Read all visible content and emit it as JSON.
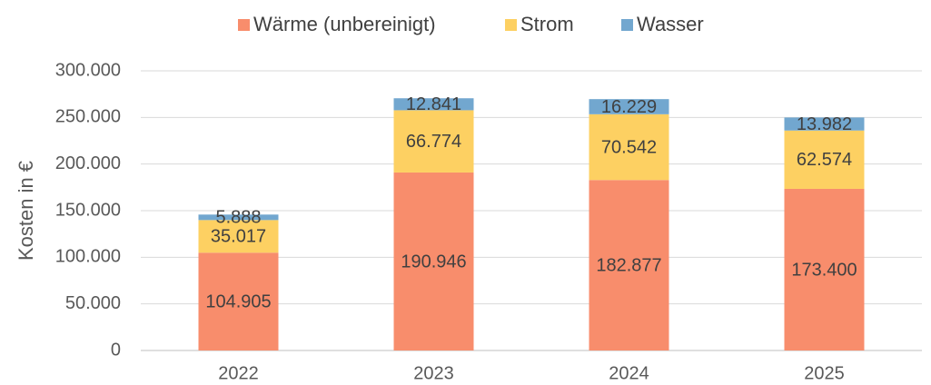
{
  "chart_data": {
    "type": "stacked_bar",
    "y_axis_label": "Kosten in €",
    "categories": [
      "2022",
      "2023",
      "2024",
      "2025"
    ],
    "series": [
      {
        "name": "Wärme (unbereinigt)",
        "color": "#f88d6c",
        "values": [
          104905,
          190946,
          182877,
          173400
        ],
        "value_labels": [
          "104.905",
          "190.946",
          "182.877",
          "173.400"
        ]
      },
      {
        "name": "Strom",
        "color": "#fdd062",
        "values": [
          35017,
          66774,
          70542,
          62574
        ],
        "value_labels": [
          "35.017",
          "66.774",
          "70.542",
          "62.574"
        ]
      },
      {
        "name": "Wasser",
        "color": "#72a7cf",
        "values": [
          5888,
          12841,
          16229,
          13982
        ],
        "value_labels": [
          "5.888",
          "12.841",
          "16.229",
          "13.982"
        ]
      }
    ],
    "ylim": [
      0,
      300000
    ],
    "yticks": [
      0,
      {
        "value": 50000,
        "label": "50.000"
      },
      {
        "value": 100000,
        "label": "100.000"
      },
      {
        "value": 150000,
        "label": "150.000"
      },
      {
        "value": 200000,
        "label": "200.000"
      },
      {
        "value": 250000,
        "label": "250.000"
      },
      {
        "value": 300000,
        "label": "300.000"
      }
    ],
    "grid": true,
    "legend": "top"
  }
}
